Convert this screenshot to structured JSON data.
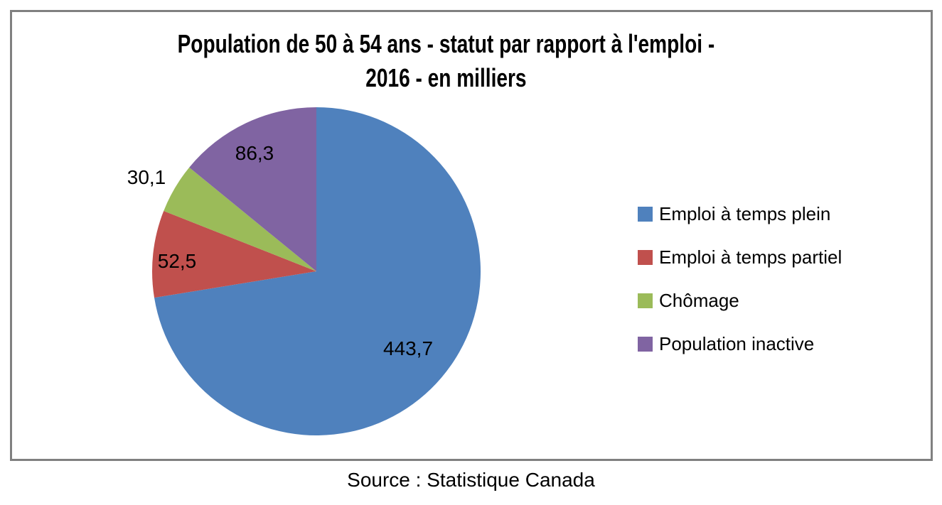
{
  "chart_data": {
    "type": "pie",
    "title": "Population de 50 à 54 ans - statut par rapport à l'emploi - 2016 - en milliers",
    "title_lines": [
      "Population de 50 à 54 ans - statut par rapport à l'emploi -",
      "2016 - en milliers"
    ],
    "units": "milliers",
    "year": "2016",
    "slices": [
      {
        "label": "Emploi à temps plein",
        "value": 443.7,
        "display": "443,7",
        "color": "#4F81BD"
      },
      {
        "label": "Emploi à temps partiel",
        "value": 52.5,
        "display": "52,5",
        "color": "#C0504D"
      },
      {
        "label": "Chômage",
        "value": 30.1,
        "display": "30,1",
        "color": "#9BBB59"
      },
      {
        "label": "Population inactive",
        "value": 86.3,
        "display": "86,3",
        "color": "#8064A2"
      }
    ],
    "start_angle_deg_from_top": 0,
    "direction": "clockwise",
    "legend_position": "right",
    "grid": false,
    "source": "Source : Statistique Canada"
  },
  "frame": {
    "border_color": "#808080"
  }
}
